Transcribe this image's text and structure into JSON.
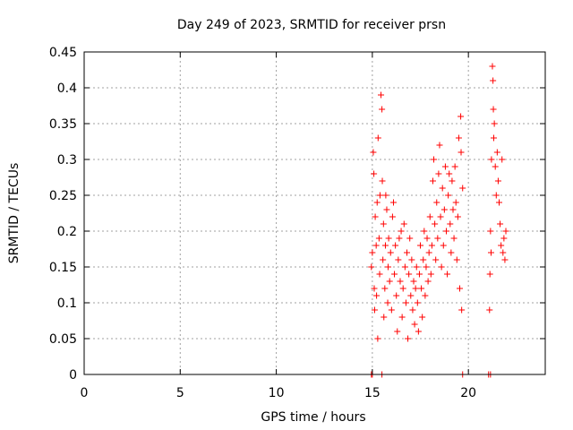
{
  "chart_data": {
    "type": "scatter",
    "title": "Day 249 of 2023, SRMTID for receiver prsn",
    "xlabel": "GPS time / hours",
    "ylabel": "SRMTID / TECUs",
    "xlim": [
      0,
      24
    ],
    "ylim": [
      0,
      0.45
    ],
    "xticks": [
      0,
      5,
      10,
      15,
      20
    ],
    "xtick_labels": [
      "0",
      "5",
      "10",
      "15",
      "20"
    ],
    "yticks": [
      0,
      0.05,
      0.1,
      0.15,
      0.2,
      0.25,
      0.3,
      0.35,
      0.4,
      0.45
    ],
    "ytick_labels": [
      "0",
      "0.05",
      "0.1",
      "0.15",
      "0.2",
      "0.25",
      "0.3",
      "0.35",
      "0.4",
      "0.45"
    ],
    "grid": true,
    "marker": "plus",
    "series": [
      {
        "name": "SRMTID",
        "color": "#ff0000",
        "points": [
          [
            14.95,
            0
          ],
          [
            15.0,
            0
          ],
          [
            15.5,
            0
          ],
          [
            19.7,
            0
          ],
          [
            21.05,
            0
          ],
          [
            21.15,
            0
          ],
          [
            14.95,
            0.15
          ],
          [
            15.0,
            0.17
          ],
          [
            15.05,
            0.31
          ],
          [
            15.08,
            0.28
          ],
          [
            15.1,
            0.12
          ],
          [
            15.12,
            0.09
          ],
          [
            15.15,
            0.22
          ],
          [
            15.2,
            0.18
          ],
          [
            15.22,
            0.11
          ],
          [
            15.25,
            0.24
          ],
          [
            15.28,
            0.05
          ],
          [
            15.3,
            0.33
          ],
          [
            15.35,
            0.19
          ],
          [
            15.38,
            0.14
          ],
          [
            15.4,
            0.25
          ],
          [
            15.45,
            0.39
          ],
          [
            15.5,
            0.37
          ],
          [
            15.52,
            0.27
          ],
          [
            15.55,
            0.16
          ],
          [
            15.58,
            0.21
          ],
          [
            15.6,
            0.08
          ],
          [
            15.65,
            0.12
          ],
          [
            15.68,
            0.18
          ],
          [
            15.7,
            0.25
          ],
          [
            15.75,
            0.23
          ],
          [
            15.8,
            0.1
          ],
          [
            15.82,
            0.15
          ],
          [
            15.85,
            0.19
          ],
          [
            15.9,
            0.13
          ],
          [
            15.95,
            0.17
          ],
          [
            16.0,
            0.09
          ],
          [
            16.05,
            0.22
          ],
          [
            16.1,
            0.24
          ],
          [
            16.15,
            0.14
          ],
          [
            16.2,
            0.18
          ],
          [
            16.25,
            0.11
          ],
          [
            16.3,
            0.06
          ],
          [
            16.35,
            0.16
          ],
          [
            16.4,
            0.19
          ],
          [
            16.45,
            0.13
          ],
          [
            16.5,
            0.2
          ],
          [
            16.55,
            0.08
          ],
          [
            16.6,
            0.12
          ],
          [
            16.65,
            0.21
          ],
          [
            16.7,
            0.15
          ],
          [
            16.75,
            0.1
          ],
          [
            16.8,
            0.17
          ],
          [
            16.85,
            0.05
          ],
          [
            16.9,
            0.14
          ],
          [
            16.95,
            0.19
          ],
          [
            17.0,
            0.11
          ],
          [
            17.05,
            0.16
          ],
          [
            17.1,
            0.09
          ],
          [
            17.15,
            0.13
          ],
          [
            17.2,
            0.07
          ],
          [
            17.25,
            0.12
          ],
          [
            17.3,
            0.15
          ],
          [
            17.35,
            0.1
          ],
          [
            17.4,
            0.06
          ],
          [
            17.45,
            0.14
          ],
          [
            17.5,
            0.18
          ],
          [
            17.55,
            0.12
          ],
          [
            17.6,
            0.08
          ],
          [
            17.65,
            0.16
          ],
          [
            17.7,
            0.2
          ],
          [
            17.75,
            0.11
          ],
          [
            17.8,
            0.15
          ],
          [
            17.85,
            0.19
          ],
          [
            17.9,
            0.13
          ],
          [
            17.95,
            0.17
          ],
          [
            18.0,
            0.22
          ],
          [
            18.05,
            0.14
          ],
          [
            18.1,
            0.18
          ],
          [
            18.15,
            0.27
          ],
          [
            18.2,
            0.3
          ],
          [
            18.25,
            0.21
          ],
          [
            18.3,
            0.16
          ],
          [
            18.35,
            0.24
          ],
          [
            18.4,
            0.19
          ],
          [
            18.45,
            0.28
          ],
          [
            18.5,
            0.32
          ],
          [
            18.55,
            0.22
          ],
          [
            18.6,
            0.15
          ],
          [
            18.65,
            0.26
          ],
          [
            18.7,
            0.18
          ],
          [
            18.75,
            0.23
          ],
          [
            18.8,
            0.29
          ],
          [
            18.85,
            0.2
          ],
          [
            18.9,
            0.14
          ],
          [
            18.95,
            0.25
          ],
          [
            19.0,
            0.28
          ],
          [
            19.05,
            0.21
          ],
          [
            19.1,
            0.17
          ],
          [
            19.15,
            0.27
          ],
          [
            19.2,
            0.23
          ],
          [
            19.25,
            0.19
          ],
          [
            19.3,
            0.29
          ],
          [
            19.35,
            0.24
          ],
          [
            19.4,
            0.16
          ],
          [
            19.45,
            0.22
          ],
          [
            19.5,
            0.33
          ],
          [
            19.55,
            0.12
          ],
          [
            19.6,
            0.36
          ],
          [
            19.62,
            0.31
          ],
          [
            19.65,
            0.09
          ],
          [
            19.7,
            0.26
          ],
          [
            21.1,
            0.09
          ],
          [
            21.12,
            0.14
          ],
          [
            21.15,
            0.2
          ],
          [
            21.18,
            0.17
          ],
          [
            21.2,
            0.3
          ],
          [
            21.25,
            0.43
          ],
          [
            21.28,
            0.41
          ],
          [
            21.3,
            0.37
          ],
          [
            21.32,
            0.33
          ],
          [
            21.35,
            0.35
          ],
          [
            21.4,
            0.29
          ],
          [
            21.45,
            0.25
          ],
          [
            21.5,
            0.31
          ],
          [
            21.55,
            0.27
          ],
          [
            21.6,
            0.24
          ],
          [
            21.65,
            0.21
          ],
          [
            21.7,
            0.18
          ],
          [
            21.75,
            0.3
          ],
          [
            21.8,
            0.17
          ],
          [
            21.85,
            0.19
          ],
          [
            21.9,
            0.16
          ],
          [
            21.95,
            0.2
          ]
        ]
      }
    ]
  }
}
